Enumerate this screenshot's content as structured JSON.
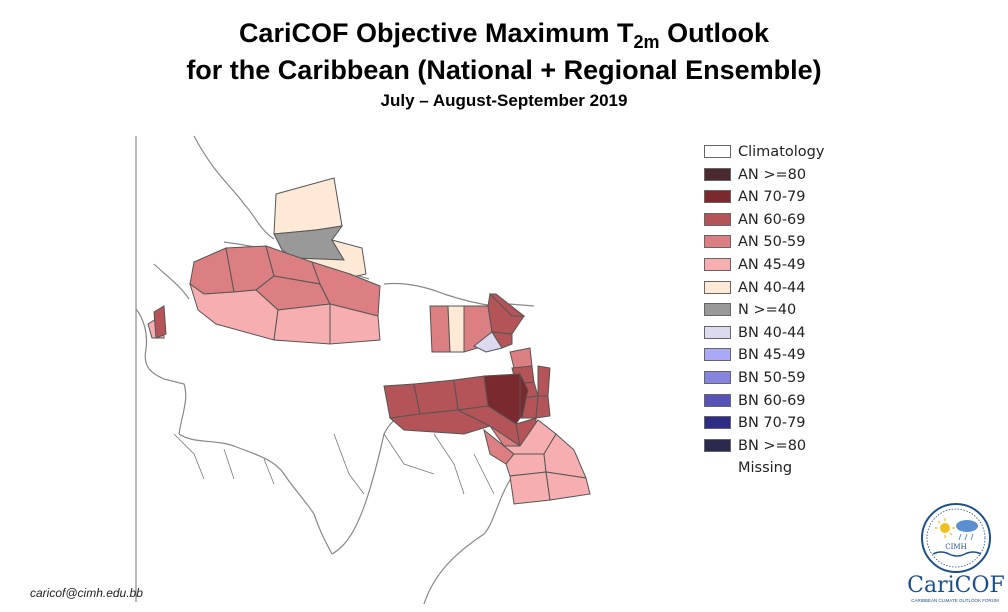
{
  "header": {
    "title_part1": "CariCOF Objective Maximum T",
    "title_sub": "2m",
    "title_part2": " Outlook",
    "subtitle": "for the Caribbean (National + Regional Ensemble)",
    "period": "July – August-September 2019"
  },
  "legend": [
    {
      "label": "Climatology",
      "color": "#ffffff"
    },
    {
      "label": "AN  >=80",
      "color": "#4a2a2e"
    },
    {
      "label": "AN  70-79",
      "color": "#7a2a2e"
    },
    {
      "label": "AN  60-69",
      "color": "#b45458"
    },
    {
      "label": "AN  50-59",
      "color": "#dc7f82"
    },
    {
      "label": "AN  45-49",
      "color": "#f7aeb1"
    },
    {
      "label": "AN  40-44",
      "color": "#fde9d6"
    },
    {
      "label": "N  >=40",
      "color": "#999999"
    },
    {
      "label": "BN  40-44",
      "color": "#dcdaee"
    },
    {
      "label": "BN  45-49",
      "color": "#a9a9f7"
    },
    {
      "label": "BN  50-59",
      "color": "#8685de"
    },
    {
      "label": "BN  60-69",
      "color": "#5554b6"
    },
    {
      "label": "BN  70-79",
      "color": "#2e2c84"
    },
    {
      "label": "BN  >=80",
      "color": "#2a2a4e"
    },
    {
      "label": "Missing",
      "color": ""
    }
  ],
  "map": {
    "land_color": "#ffffff",
    "coast_color": "#888888",
    "border_color": "#555555"
  },
  "footer": {
    "email": "caricof@cimh.edu.bb"
  },
  "logo": {
    "seal_text": "CIMH",
    "wordmark": "CariCOF",
    "tagline": "CARIBBEAN CLIMATE OUTLOOK FORUM"
  }
}
